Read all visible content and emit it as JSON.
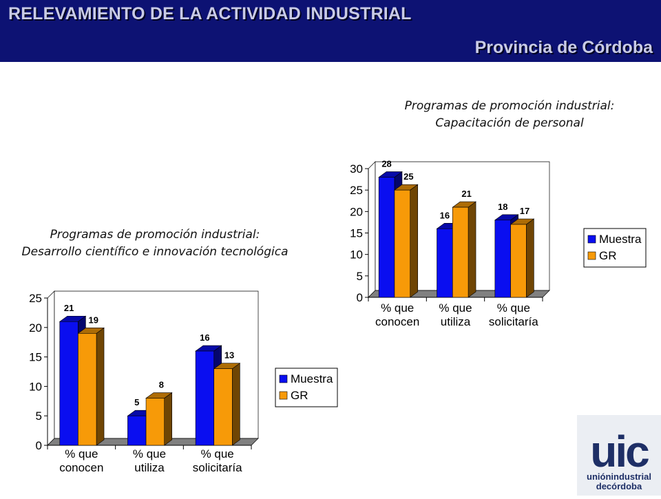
{
  "header": {
    "title": "RELEVAMIENTO DE LA ACTIVIDAD INDUSTRIAL",
    "subtitle": "Provincia de Córdoba"
  },
  "logo": {
    "letters": "uic",
    "line1": "uniónindustrial",
    "line2": "decórdoba"
  },
  "colors": {
    "header_bg": "#0d1273",
    "muestra": "#0a0ef0",
    "gr": "#f79a08",
    "floor": "#808080"
  },
  "chart_data": [
    {
      "type": "bar",
      "title": [
        "Programas de promoción industrial:",
        "Desarrollo científico e innovación tecnológica"
      ],
      "categories": [
        [
          "% que",
          "conocen"
        ],
        [
          "% que",
          "utiliza"
        ],
        [
          "% que",
          "solicitaría"
        ]
      ],
      "series": [
        {
          "name": "Muestra",
          "values": [
            21,
            5,
            16
          ]
        },
        {
          "name": "GR",
          "values": [
            19,
            8,
            13
          ]
        }
      ],
      "ylim": [
        0,
        25
      ],
      "yticks": [
        0,
        5,
        10,
        15,
        20,
        25
      ],
      "legend": "right",
      "grid": false,
      "style": "3d-column"
    },
    {
      "type": "bar",
      "title": [
        "Programas de promoción industrial:",
        "Capacitación de personal"
      ],
      "categories": [
        [
          "% que",
          "conocen"
        ],
        [
          "% que",
          "utiliza"
        ],
        [
          "% que",
          "solicitaría"
        ]
      ],
      "series": [
        {
          "name": "Muestra",
          "values": [
            28,
            16,
            18
          ]
        },
        {
          "name": "GR",
          "values": [
            25,
            21,
            17
          ]
        }
      ],
      "ylim": [
        0,
        30
      ],
      "yticks": [
        0,
        5,
        10,
        15,
        20,
        25,
        30
      ],
      "legend": "right",
      "grid": false,
      "style": "3d-column"
    }
  ]
}
